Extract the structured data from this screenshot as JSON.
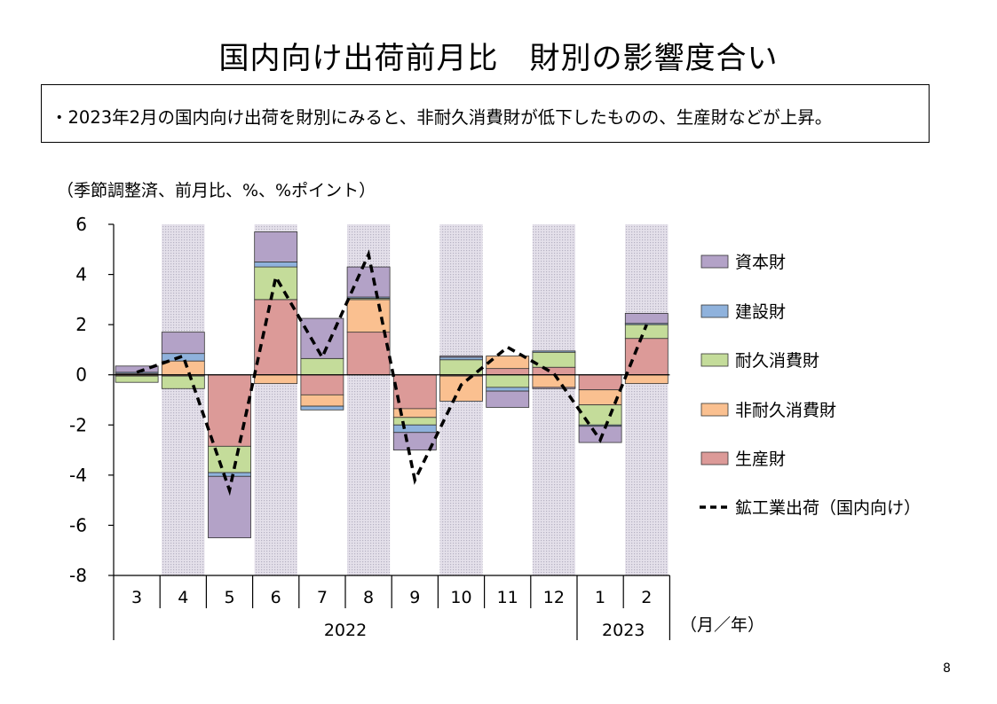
{
  "page": {
    "title": "国内向け出荷前月比　財別の影響度合い",
    "summary": "・2023年2月の国内向け出荷を財別にみると、非耐久消費財が低下したものの、生産財などが上昇。",
    "unit_note": "（季節調整済、前月比、%、%ポイント）",
    "axis_unit_label": "（月／年）",
    "page_number": "8"
  },
  "chart_data": {
    "type": "bar",
    "stacked": true,
    "categories": [
      "3",
      "4",
      "5",
      "6",
      "7",
      "8",
      "9",
      "10",
      "11",
      "12",
      "1",
      "2"
    ],
    "year_groups": [
      {
        "label": "2022",
        "start": 0,
        "end": 9
      },
      {
        "label": "2023",
        "start": 10,
        "end": 11
      }
    ],
    "ylim": [
      -8,
      6
    ],
    "yticks": [
      6,
      4,
      2,
      0,
      -2,
      -4,
      -6,
      -8
    ],
    "shaded_categories": [
      1,
      3,
      5,
      7,
      9,
      11
    ],
    "series": [
      {
        "name": "生産財",
        "color": "#dc9a98",
        "values": [
          0.05,
          -0.05,
          -2.85,
          3.0,
          -0.8,
          1.7,
          -1.35,
          -0.05,
          0.25,
          0.3,
          -0.6,
          1.45
        ]
      },
      {
        "name": "非耐久消費財",
        "color": "#fac090",
        "values": [
          -0.05,
          0.55,
          0.0,
          -0.35,
          -0.45,
          1.3,
          -0.35,
          -1.0,
          0.5,
          -0.5,
          -0.6,
          -0.35
        ]
      },
      {
        "name": "耐久消費財",
        "color": "#c4dc9a",
        "values": [
          -0.25,
          -0.5,
          -1.05,
          1.3,
          0.65,
          0.05,
          -0.3,
          0.6,
          -0.5,
          0.6,
          -0.8,
          0.55
        ]
      },
      {
        "name": "建設財",
        "color": "#8fb2dc",
        "values": [
          0.05,
          0.3,
          -0.15,
          0.2,
          -0.15,
          0.05,
          -0.3,
          0.1,
          -0.15,
          0.05,
          -0.05,
          0.05
        ]
      },
      {
        "name": "資本財",
        "color": "#b3a2c7",
        "values": [
          0.25,
          0.85,
          -2.45,
          1.2,
          1.6,
          1.2,
          -0.7,
          0.05,
          -0.65,
          -0.05,
          -0.65,
          0.4
        ]
      }
    ],
    "line": {
      "name": "鉱工業出荷（国内向け）",
      "color": "#000000",
      "values": [
        0.1,
        0.75,
        -4.6,
        3.9,
        0.7,
        4.8,
        -4.2,
        -0.4,
        1.1,
        0.05,
        -2.6,
        2.0
      ]
    },
    "legend_order": [
      "資本財",
      "建設財",
      "耐久消費財",
      "非耐久消費財",
      "生産財",
      "鉱工業出荷（国内向け）"
    ],
    "legend_position": "right"
  }
}
